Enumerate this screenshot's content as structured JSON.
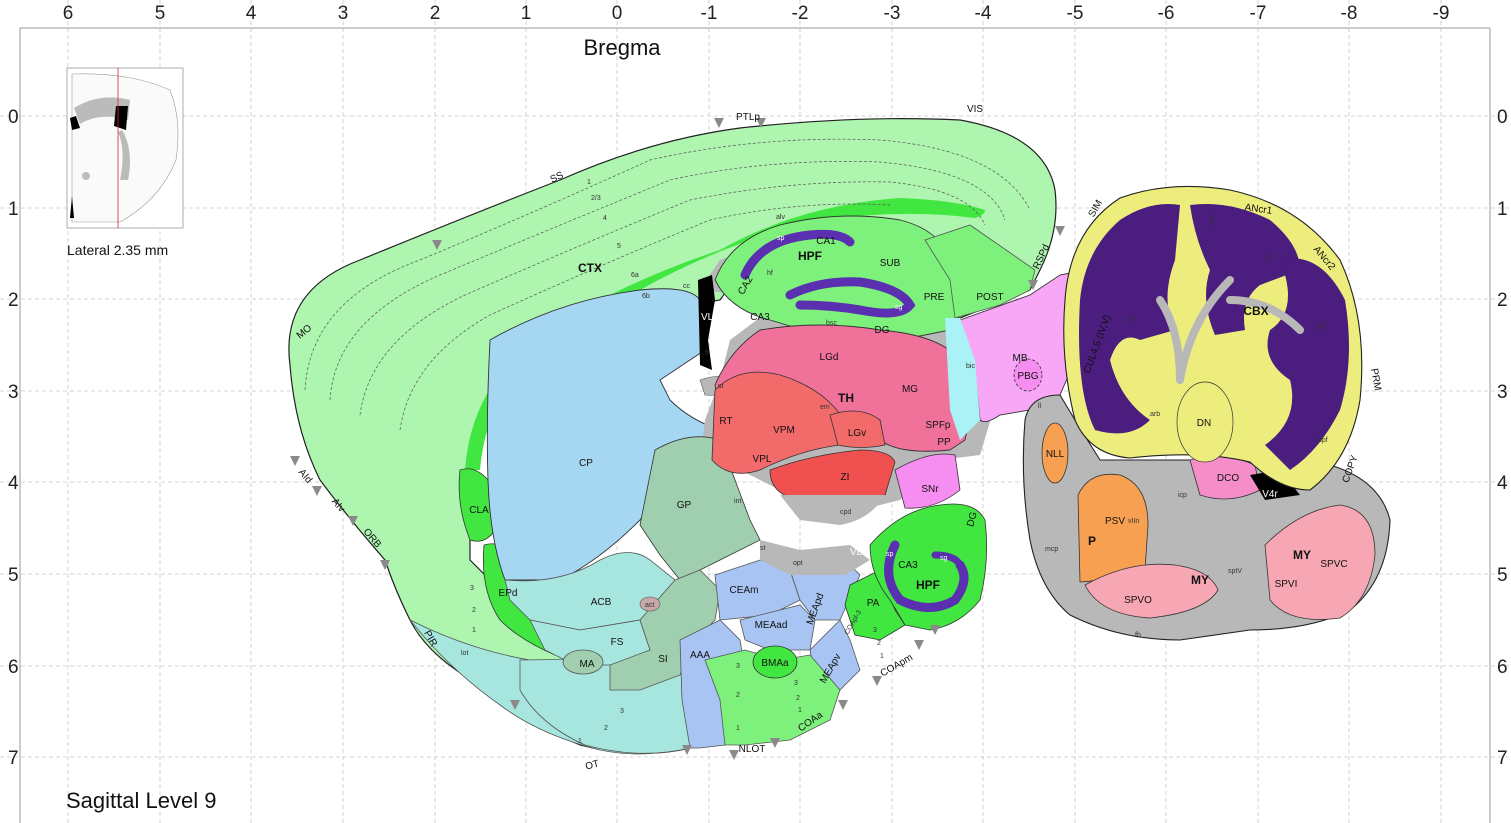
{
  "title": "Bregma",
  "level_label": "Sagittal Level 9",
  "inset_label": "Lateral 2.35 mm",
  "axes": {
    "x_ticks": [
      "6",
      "5",
      "4",
      "3",
      "2",
      "1",
      "0",
      "-1",
      "-2",
      "-3",
      "-4",
      "-5",
      "-6",
      "-7",
      "-8",
      "-9"
    ],
    "y_ticks": [
      "0",
      "1",
      "2",
      "3",
      "4",
      "5",
      "6",
      "7"
    ]
  },
  "colors": {
    "cortex": "#aef5b0",
    "cortex_dark": "#41e640",
    "hippocampus": "#7ef07c",
    "striatum_blue": "#a5d6f2",
    "pallidum": "#9fcfae",
    "striatum_ventral": "#a7e6df",
    "thalamus": "#f0729a",
    "thalamus_red": "#f26a6a",
    "midbrain": "#f7a7f5",
    "cerebellum": "#eded7e",
    "cerebellum_gray": "#4a1d7f",
    "pons": "#f7a052",
    "medulla": "#f7a7b3",
    "fiber": "#b8b8b8",
    "ventricle": "#000000",
    "hypothalamus": "#a7c4f2",
    "csf": "#aaf2f5"
  },
  "regions": {
    "CTX": "CTX",
    "HPF": "HPF",
    "HPF2": "HPF",
    "TH": "TH",
    "CBX": "CBX",
    "MY": "MY",
    "MY2": "MY",
    "MB": "MB",
    "P": "P",
    "CP": "CP",
    "GP": "GP",
    "ACB": "ACB",
    "FS": "FS",
    "SI": "SI",
    "MA": "MA",
    "CLA": "CLA",
    "EPd": "EPd",
    "LGd": "LGd",
    "MG": "MG",
    "VPM": "VPM",
    "VPL": "VPL",
    "RT": "RT",
    "LGv": "LGv",
    "ZI": "ZI",
    "SNr": "SNr",
    "SPFp": "SPFp",
    "PP": "PP",
    "PBG": "PBG",
    "NLL": "NLL",
    "PSV": "PSV",
    "SPVO": "SPVO",
    "SPVI": "SPVI",
    "SPVC": "SPVC",
    "DCO": "DCO",
    "DN": "DN",
    "V4r": "V4r",
    "CEAm": "CEAm",
    "MEAad": "MEAad",
    "MEApd": "MEApd",
    "MEApv": "MEApv",
    "BMAa": "BMAa",
    "AAA": "AAA",
    "PA": "PA",
    "CA1": "CA1",
    "CA2": "CA2",
    "CA3": "CA3",
    "CA3b": "CA3",
    "DG": "DG",
    "DG2": "DG",
    "SUB": "SUB",
    "PRE": "PRE",
    "POST": "POST",
    "VL": "VL",
    "VL2": "VL",
    "st": "st",
    "st2": "st",
    "fi": "fi",
    "cc": "cc",
    "em": "em",
    "int": "int",
    "cpd": "cpd",
    "opt": "opt",
    "bsc": "bsc",
    "bic": "bic",
    "ll": "ll",
    "arb": "arb",
    "icp": "icp",
    "mcp": "mcp",
    "sptV": "sptV",
    "vIIn": "vIIn",
    "fb": "fb",
    "act": "act",
    "lot": "lot",
    "alv": "alv",
    "hf": "hf",
    "sp": "sp",
    "sg": "sg",
    "sp2": "sp",
    "sg2": "sg",
    "COApm": "COApm",
    "COAa": "COAa",
    "COApl": "COApl-3"
  },
  "edge_labels": {
    "PTLp": "PTLp",
    "VIS": "VIS",
    "SS": "SS",
    "MO": "MO",
    "AId": "AId",
    "AIv": "AIv",
    "ORB": "ORB",
    "PIR": "PIR",
    "OT": "OT",
    "NLOT": "NLOT",
    "RSPd": "RSPd",
    "SIM": "SIM",
    "ANcr1": "ANcr1",
    "ANcr2": "ANcr2",
    "PRM": "PRM",
    "COPY": "COPY",
    "CUL45": "CUL4,5 (IV,V)",
    "psf": "psf",
    "icf": "icf",
    "apf": "apf",
    "pri": "pri",
    "ppf": "ppf"
  },
  "layer_labels": {
    "l1": "1",
    "l23": "2/3",
    "l4": "4",
    "l5": "5",
    "l6a": "6a",
    "l6b": "6b",
    "ol1": "1",
    "ol2": "2",
    "ol3": "3",
    "c1": "1",
    "c2": "2",
    "c3": "3",
    "e1": "1",
    "e2": "2",
    "e3": "3",
    "p1": "1",
    "p2": "2",
    "p3": "3",
    "ot1": "1",
    "ot2": "2",
    "ot3": "3"
  }
}
